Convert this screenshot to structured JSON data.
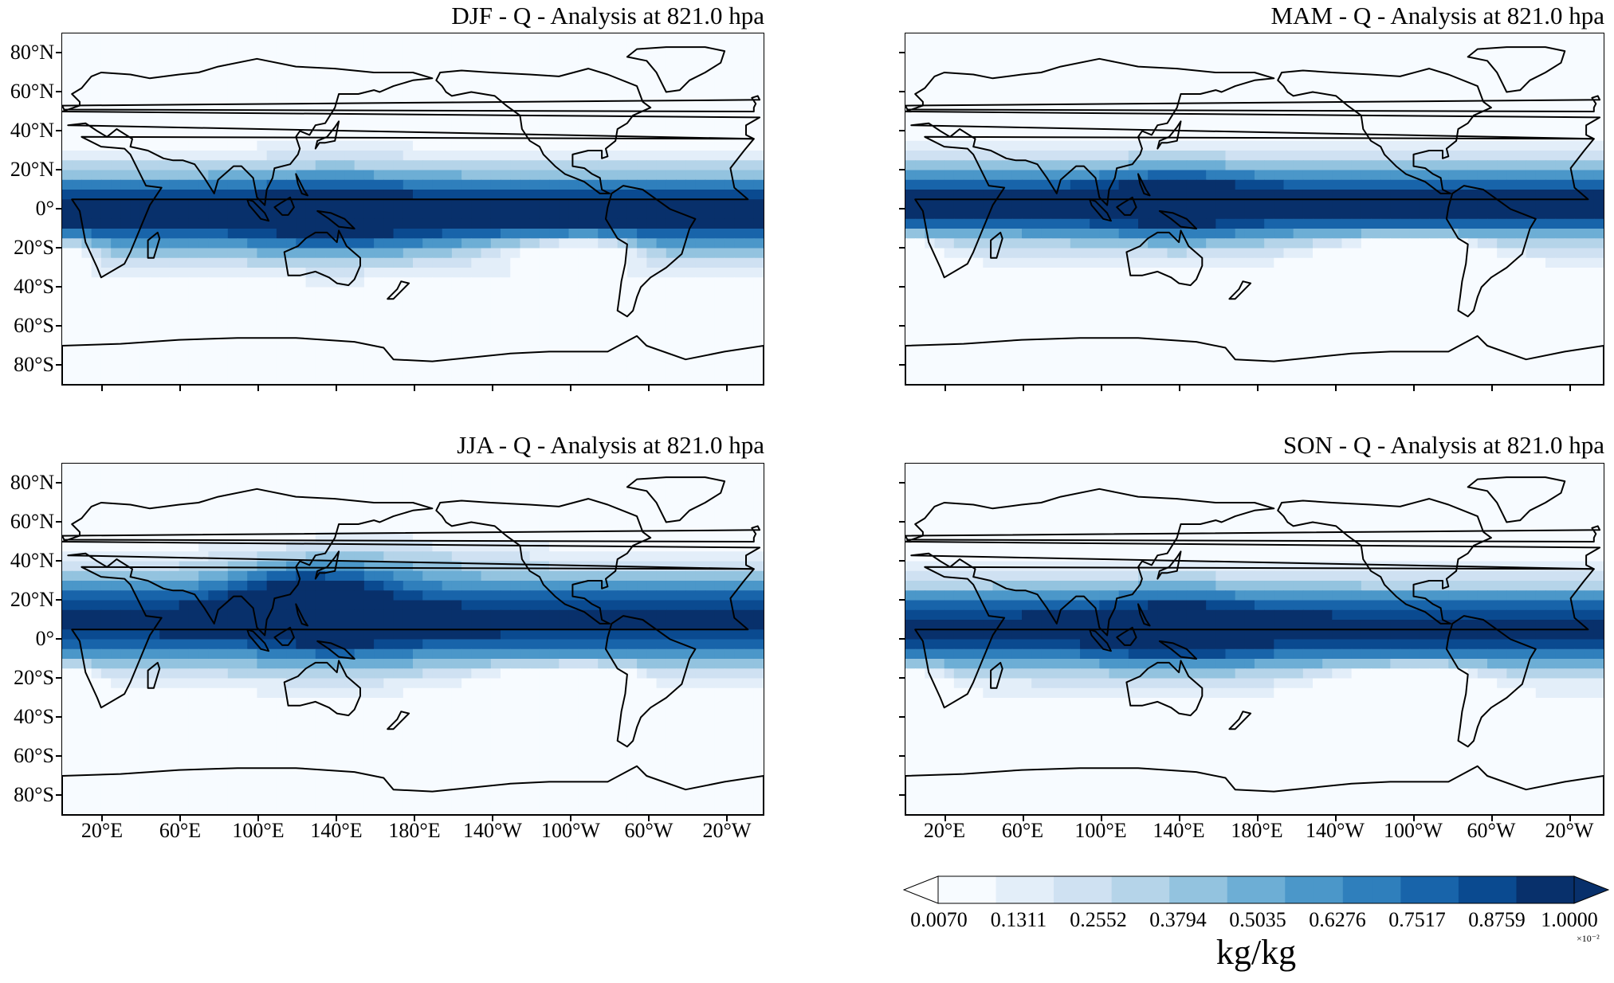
{
  "panels": [
    {
      "title": "DJF - Q - Analysis at 821.0 hpa"
    },
    {
      "title": "MAM - Q - Analysis at 821.0 hpa"
    },
    {
      "title": "JJA - Q - Analysis at 821.0 hpa"
    },
    {
      "title": "SON - Q - Analysis at 821.0 hpa"
    }
  ],
  "lat_ticks": [
    "80°N",
    "60°N",
    "40°N",
    "20°N",
    "0°",
    "20°S",
    "40°S",
    "60°S",
    "80°S"
  ],
  "lon_ticks": [
    "20°E",
    "60°E",
    "100°E",
    "140°E",
    "180°E",
    "140°W",
    "100°W",
    "60°W",
    "20°W"
  ],
  "colorbar": {
    "tick_labels": [
      "0.0070",
      "0.1311",
      "0.2552",
      "0.3794",
      "0.5035",
      "0.6276",
      "0.7517",
      "0.8759",
      "1.0000"
    ],
    "units": "kg/kg",
    "exponent": "×10⁻²",
    "colors": [
      "#f7fbff",
      "#e3eef9",
      "#cfe1f2",
      "#b5d4e9",
      "#93c3df",
      "#6daed5",
      "#4b97c9",
      "#2f7fbc",
      "#1864aa",
      "#0a4a90",
      "#08306b"
    ]
  },
  "map_colors": {
    "ocean_background": "#f2f7fd",
    "coastline": "#000000"
  }
}
